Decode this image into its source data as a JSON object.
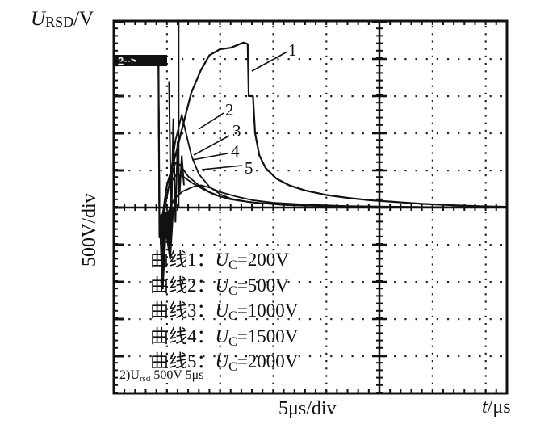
{
  "chart_data": {
    "type": "line",
    "title": "",
    "ylabel": {
      "symbol": "U",
      "subscript": "RSD",
      "unit": "/V"
    },
    "ylabel_scale": "500V/div",
    "xlabel_scale": "5μs/div",
    "xlabel": {
      "symbol": "t",
      "unit": "/μs"
    },
    "scope_info": {
      "prefix": "2)U",
      "subscript": "rsd",
      "suffix": " 500V 5μs"
    },
    "channel_marker": "2",
    "grid": true,
    "x_div_units": 5,
    "y_div_units": 500,
    "xlim": [
      0,
      37
    ],
    "ylim": [
      -2500,
      2600
    ],
    "series": [
      {
        "name": "1",
        "label": "曲线1：",
        "uc": "=200V",
        "points": [
          [
            0,
            1950
          ],
          [
            4.2,
            1950
          ],
          [
            4.3,
            -400
          ],
          [
            5.0,
            300
          ],
          [
            5.8,
            700
          ],
          [
            6.5,
            1100
          ],
          [
            7.3,
            1550
          ],
          [
            8.2,
            1850
          ],
          [
            9,
            2050
          ],
          [
            10,
            2130
          ],
          [
            11,
            2150
          ],
          [
            12.2,
            2220
          ],
          [
            12.6,
            2200
          ],
          [
            12.7,
            1500
          ],
          [
            13.1,
            1500
          ],
          [
            13.3,
            1000
          ],
          [
            13.7,
            700
          ],
          [
            14.3,
            530
          ],
          [
            15.3,
            390
          ],
          [
            16.5,
            300
          ],
          [
            18,
            230
          ],
          [
            20,
            170
          ],
          [
            22,
            130
          ],
          [
            24,
            100
          ],
          [
            26,
            80
          ],
          [
            29,
            50
          ],
          [
            32,
            30
          ],
          [
            35,
            15
          ],
          [
            37,
            10
          ]
        ]
      },
      {
        "name": "2",
        "label": "曲线2：",
        "uc": "=500V",
        "points": [
          [
            0,
            1950
          ],
          [
            4.2,
            1950
          ],
          [
            4.3,
            -400
          ],
          [
            5.2,
            300
          ],
          [
            5.8,
            900
          ],
          [
            6.4,
            1250
          ],
          [
            6.8,
            1000
          ],
          [
            7.3,
            700
          ],
          [
            8,
            450
          ],
          [
            9,
            280
          ],
          [
            10,
            180
          ],
          [
            11,
            120
          ],
          [
            12.5,
            80
          ],
          [
            14,
            55
          ],
          [
            17,
            35
          ],
          [
            20,
            25
          ],
          [
            25,
            10
          ],
          [
            30,
            5
          ],
          [
            37,
            0
          ]
        ]
      },
      {
        "name": "3",
        "label": "曲线3：",
        "uc": "=1000V",
        "points": [
          [
            0,
            1950
          ],
          [
            4.2,
            1950
          ],
          [
            4.3,
            -400
          ],
          [
            5.2,
            300
          ],
          [
            5.8,
            600
          ],
          [
            6.2,
            580
          ],
          [
            7,
            420
          ],
          [
            8,
            300
          ],
          [
            9,
            210
          ],
          [
            10,
            150
          ],
          [
            11.5,
            100
          ],
          [
            13,
            70
          ],
          [
            16,
            40
          ],
          [
            20,
            20
          ],
          [
            25,
            10
          ],
          [
            37,
            0
          ]
        ]
      },
      {
        "name": "4",
        "label": "曲线4：",
        "uc": "=1500V",
        "points": [
          [
            0,
            1950
          ],
          [
            4.2,
            1950
          ],
          [
            4.3,
            -400
          ],
          [
            5.2,
            300
          ],
          [
            5.9,
            450
          ],
          [
            6.5,
            420
          ],
          [
            7.5,
            320
          ],
          [
            8.5,
            240
          ],
          [
            9.5,
            170
          ],
          [
            11,
            110
          ],
          [
            13,
            70
          ],
          [
            16,
            35
          ],
          [
            20,
            18
          ],
          [
            25,
            8
          ],
          [
            37,
            0
          ]
        ]
      },
      {
        "name": "5",
        "label": "曲线5：",
        "uc": "=2000V",
        "points": [
          [
            0,
            1950
          ],
          [
            4.2,
            1950
          ],
          [
            4.3,
            -400
          ],
          [
            5,
            -100
          ],
          [
            5.7,
            120
          ],
          [
            6.5,
            220
          ],
          [
            7.5,
            280
          ],
          [
            8.2,
            300
          ],
          [
            9,
            270
          ],
          [
            10,
            210
          ],
          [
            11.5,
            150
          ],
          [
            13,
            100
          ],
          [
            15,
            65
          ],
          [
            18,
            40
          ],
          [
            22,
            20
          ],
          [
            28,
            10
          ],
          [
            37,
            0
          ]
        ]
      }
    ]
  },
  "legend": [
    {
      "label": "曲线1：",
      "symbol": "U",
      "subscript": "C",
      "value": "=200V"
    },
    {
      "label": "曲线2：",
      "symbol": "U",
      "subscript": "C",
      "value": "=500V"
    },
    {
      "label": "曲线3：",
      "symbol": "U",
      "subscript": "C",
      "value": "=1000V"
    },
    {
      "label": "曲线4：",
      "symbol": "U",
      "subscript": "C",
      "value": "=1500V"
    },
    {
      "label": "曲线5：",
      "symbol": "U",
      "subscript": "C",
      "value": "=2000V"
    }
  ],
  "colors": {
    "trace": "#111111",
    "grid": "#222222",
    "background": "#ffffff"
  }
}
